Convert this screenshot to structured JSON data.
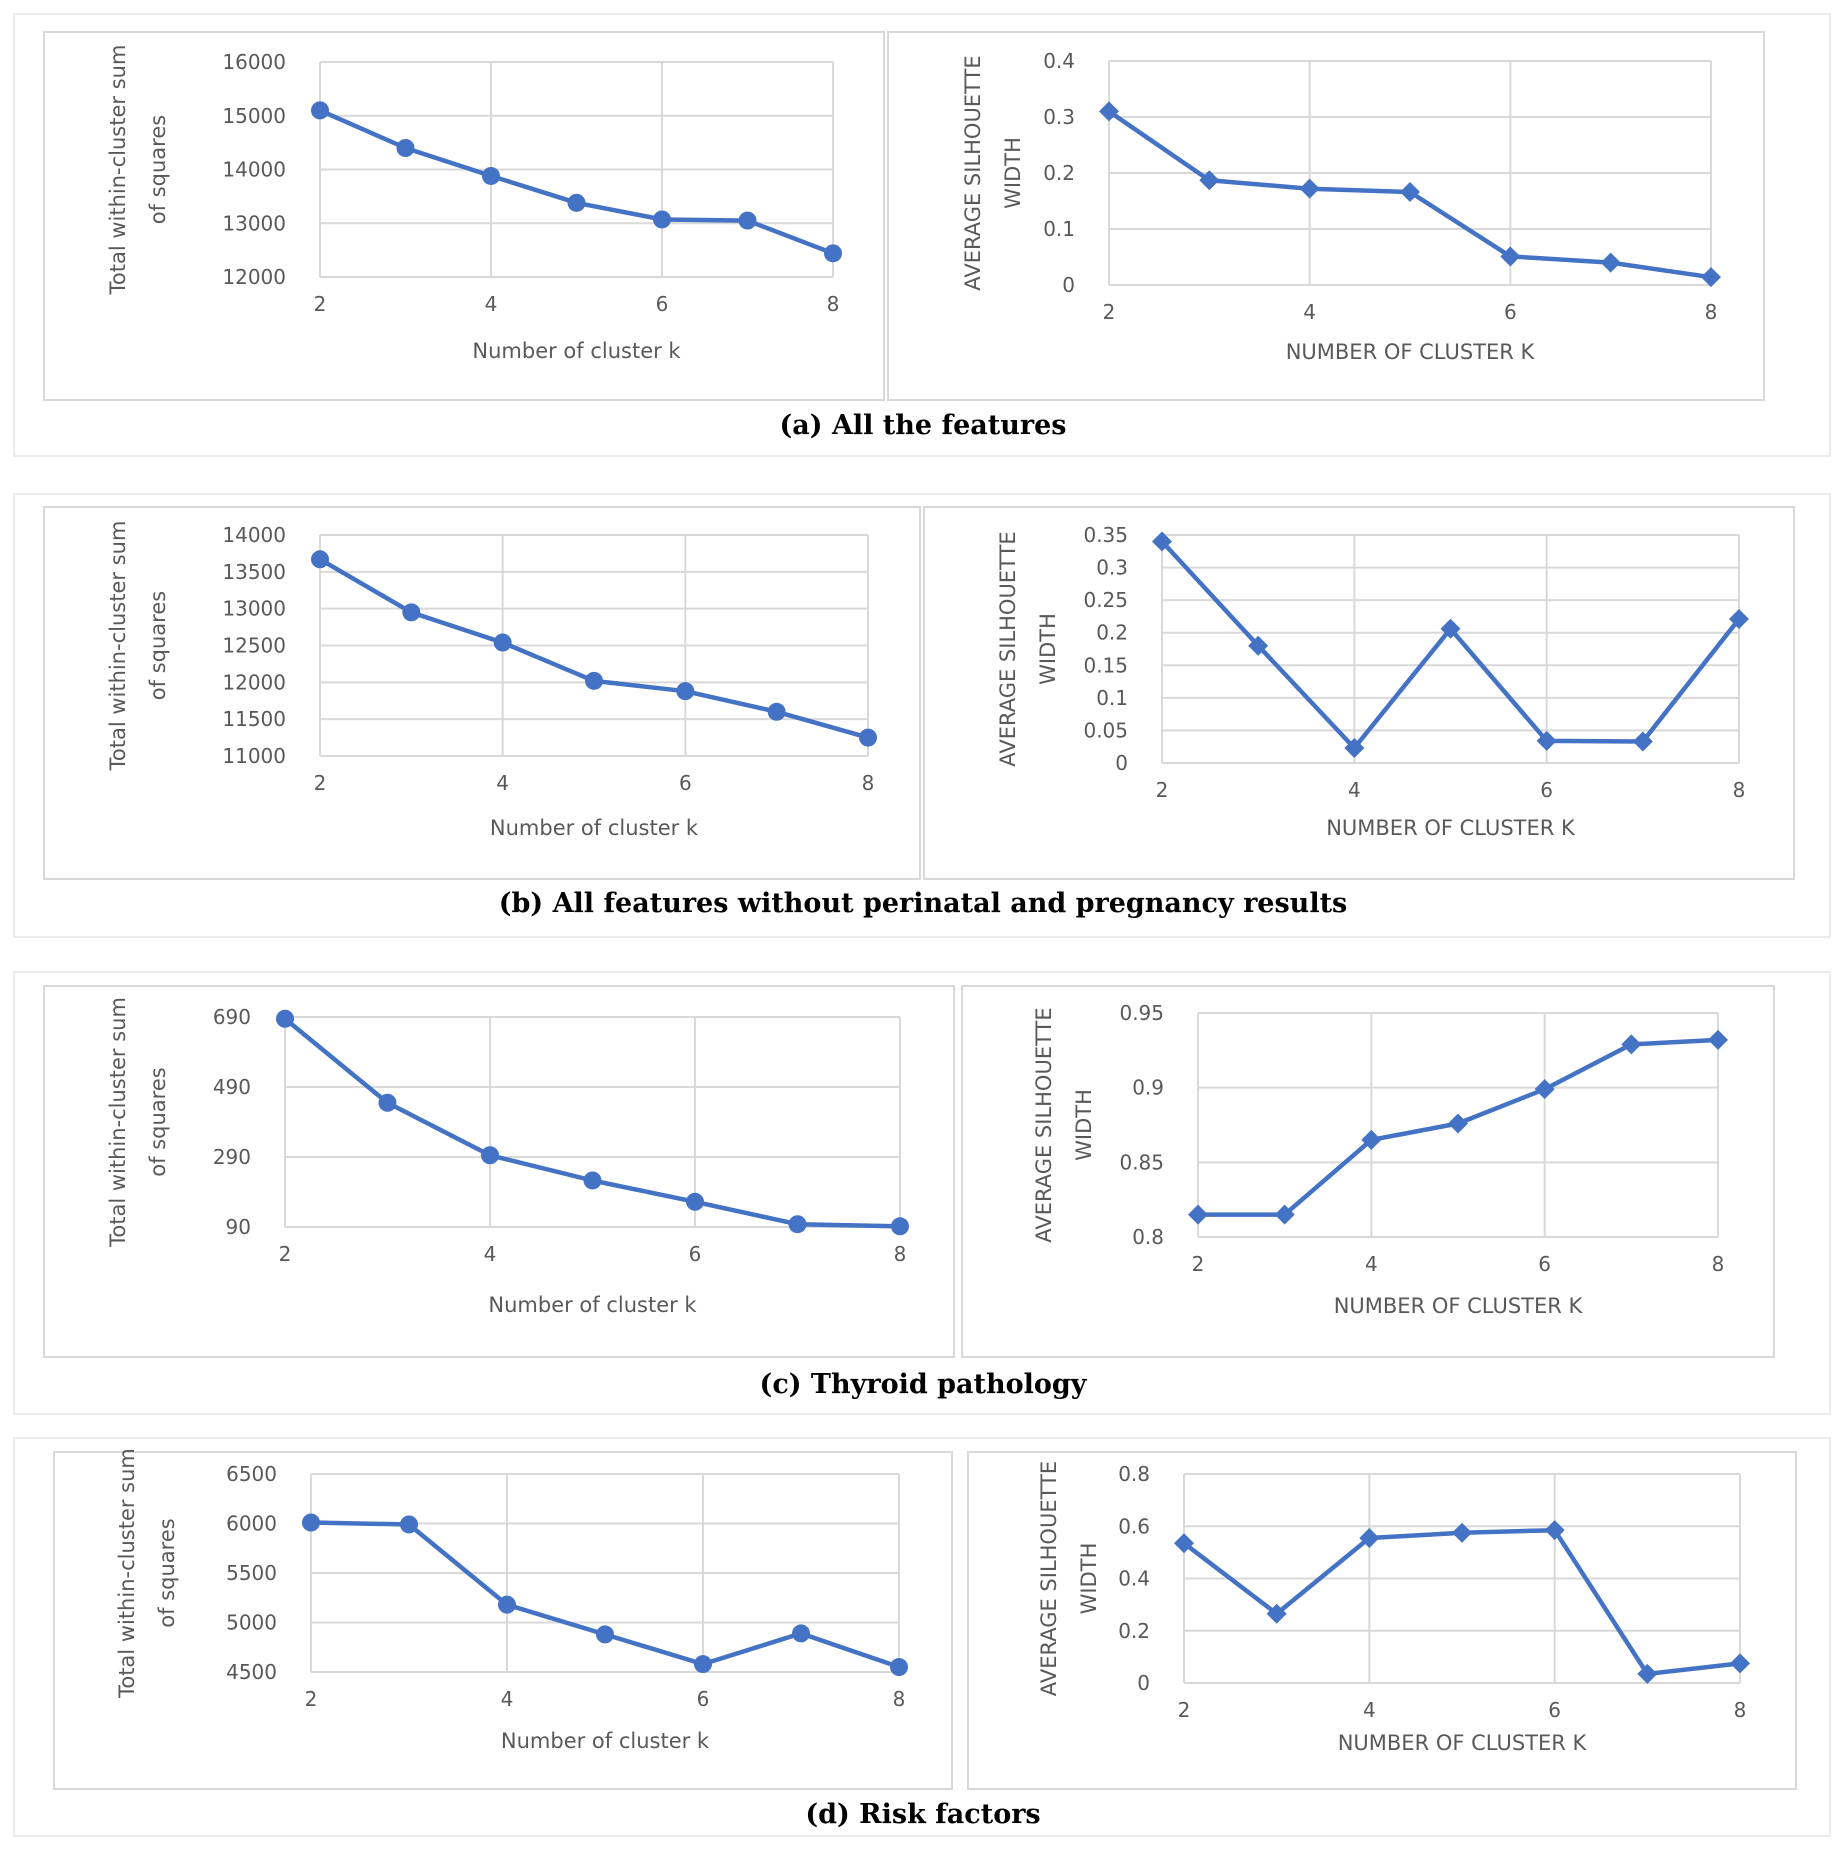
{
  "colors": {
    "series": "#4472C4",
    "grid": "#D9D9D9",
    "text": "#595959",
    "frame": "#D9D9D9"
  },
  "captions": [
    "(a) All the features",
    "(b) All features without perinatal and pregnancy results",
    "(c) Thyroid pathology",
    "(d) Risk factors"
  ],
  "chart_data": [
    {
      "id": "a-wss",
      "type": "line",
      "marker": "circle",
      "title": "",
      "xlabel": "Number of cluster k",
      "ylabel": [
        "Total within-cluster sum",
        "of squares"
      ],
      "x": [
        2,
        3,
        4,
        5,
        6,
        7,
        8
      ],
      "values": [
        15100,
        14400,
        13880,
        13380,
        13070,
        13050,
        12440
      ],
      "xticks": [
        2,
        4,
        6,
        8
      ],
      "xtick_labels": [
        "2",
        "4",
        "6",
        "8"
      ],
      "xlim": [
        2,
        8
      ],
      "ylim": [
        12000,
        16000
      ],
      "yticks": [
        12000,
        13000,
        14000,
        15000,
        16000
      ],
      "ytick_labels": [
        "12000",
        "13000",
        "14000",
        "15000",
        "16000"
      ]
    },
    {
      "id": "a-sil",
      "type": "line",
      "marker": "diamond",
      "title": "",
      "xlabel": "NUMBER OF CLUSTER K",
      "ylabel": [
        "AVERAGE SILHOUETTE",
        "WIDTH"
      ],
      "x": [
        2,
        3,
        4,
        5,
        6,
        7,
        8
      ],
      "values": [
        0.31,
        0.187,
        0.172,
        0.166,
        0.051,
        0.04,
        0.014
      ],
      "xticks": [
        2,
        4,
        6,
        8
      ],
      "xtick_labels": [
        "2",
        "4",
        "6",
        "8"
      ],
      "xlim": [
        2,
        8
      ],
      "ylim": [
        0,
        0.4
      ],
      "yticks": [
        0,
        0.1,
        0.2,
        0.3,
        0.4
      ],
      "ytick_labels": [
        "0",
        "0.1",
        "0.2",
        "0.3",
        "0.4"
      ]
    },
    {
      "id": "b-wss",
      "type": "line",
      "marker": "circle",
      "title": "",
      "xlabel": "Number of cluster k",
      "ylabel": [
        "Total within-cluster sum",
        "of squares"
      ],
      "x": [
        2,
        3,
        4,
        5,
        6,
        7,
        8
      ],
      "values": [
        13670,
        12950,
        12540,
        12020,
        11880,
        11600,
        11250
      ],
      "xticks": [
        2,
        4,
        6,
        8
      ],
      "xtick_labels": [
        "2",
        "4",
        "6",
        "8"
      ],
      "xlim": [
        2,
        8
      ],
      "ylim": [
        11000,
        14000
      ],
      "yticks": [
        11000,
        11500,
        12000,
        12500,
        13000,
        13500,
        14000
      ],
      "ytick_labels": [
        "11000",
        "11500",
        "12000",
        "12500",
        "13000",
        "13500",
        "14000"
      ]
    },
    {
      "id": "b-sil",
      "type": "line",
      "marker": "diamond",
      "title": "",
      "xlabel": "NUMBER OF CLUSTER K",
      "ylabel": [
        "AVERAGE SILHOUETTE",
        "WIDTH"
      ],
      "x": [
        2,
        3,
        4,
        5,
        6,
        7,
        8
      ],
      "values": [
        0.34,
        0.18,
        0.023,
        0.206,
        0.034,
        0.033,
        0.221
      ],
      "xticks": [
        2,
        4,
        6,
        8
      ],
      "xtick_labels": [
        "2",
        "4",
        "6",
        "8"
      ],
      "xlim": [
        2,
        8
      ],
      "ylim": [
        0,
        0.35
      ],
      "yticks": [
        0,
        0.05,
        0.1,
        0.15,
        0.2,
        0.25,
        0.3,
        0.35
      ],
      "ytick_labels": [
        "0",
        "0.05",
        "0.1",
        "0.15",
        "0.2",
        "0.25",
        "0.3",
        "0.35"
      ]
    },
    {
      "id": "c-wss",
      "type": "line",
      "marker": "circle",
      "title": "",
      "xlabel": "Number of cluster k",
      "ylabel": [
        "Total within-cluster sum",
        "of squares"
      ],
      "x": [
        2,
        3,
        4,
        5,
        6,
        7,
        8
      ],
      "values": [
        685,
        445,
        295,
        223,
        162,
        98,
        92
      ],
      "xticks": [
        2,
        4,
        6,
        8
      ],
      "xtick_labels": [
        "2",
        "4",
        "6",
        "8"
      ],
      "xlim": [
        2,
        8
      ],
      "ylim": [
        90,
        690
      ],
      "yticks": [
        90,
        290,
        490,
        690
      ],
      "ytick_labels": [
        "90",
        "290",
        "490",
        "690"
      ]
    },
    {
      "id": "c-sil",
      "type": "line",
      "marker": "diamond",
      "title": "",
      "xlabel": "NUMBER OF CLUSTER K",
      "ylabel": [
        "AVERAGE SILHOUETTE",
        "WIDTH"
      ],
      "x": [
        2,
        3,
        4,
        5,
        6,
        7,
        8
      ],
      "values": [
        0.815,
        0.815,
        0.865,
        0.876,
        0.899,
        0.929,
        0.932
      ],
      "xticks": [
        2,
        4,
        6,
        8
      ],
      "xtick_labels": [
        "2",
        "4",
        "6",
        "8"
      ],
      "xlim": [
        2,
        8
      ],
      "ylim": [
        0.8,
        0.95
      ],
      "yticks": [
        0.8,
        0.85,
        0.9,
        0.95
      ],
      "ytick_labels": [
        "0.8",
        "0.85",
        "0.9",
        "0.95"
      ]
    },
    {
      "id": "d-wss",
      "type": "line",
      "marker": "circle",
      "title": "",
      "xlabel": "Number of cluster k",
      "ylabel": [
        "Total within-cluster sum",
        "of squares"
      ],
      "x": [
        2,
        3,
        4,
        5,
        6,
        7,
        8
      ],
      "values": [
        6010,
        5990,
        5180,
        4880,
        4580,
        4890,
        4550
      ],
      "xticks": [
        2,
        4,
        6,
        8
      ],
      "xtick_labels": [
        "2",
        "4",
        "6",
        "8"
      ],
      "xlim": [
        2,
        8
      ],
      "ylim": [
        4500,
        6500
      ],
      "yticks": [
        4500,
        5000,
        5500,
        6000,
        6500
      ],
      "ytick_labels": [
        "4500",
        "5000",
        "5500",
        "6000",
        "6500"
      ]
    },
    {
      "id": "d-sil",
      "type": "line",
      "marker": "diamond",
      "title": "",
      "xlabel": "NUMBER OF CLUSTER K",
      "ylabel": [
        "AVERAGE SILHOUETTE",
        "WIDTH"
      ],
      "x": [
        2,
        3,
        4,
        5,
        6,
        7,
        8
      ],
      "values": [
        0.535,
        0.265,
        0.555,
        0.575,
        0.585,
        0.035,
        0.075
      ],
      "xticks": [
        2,
        4,
        6,
        8
      ],
      "xtick_labels": [
        "2",
        "4",
        "6",
        "8"
      ],
      "xlim": [
        2,
        8
      ],
      "ylim": [
        0,
        0.8
      ],
      "yticks": [
        0,
        0.2,
        0.4,
        0.6,
        0.8
      ],
      "ytick_labels": [
        "0",
        "0.2",
        "0.4",
        "0.6",
        "0.8"
      ]
    }
  ]
}
